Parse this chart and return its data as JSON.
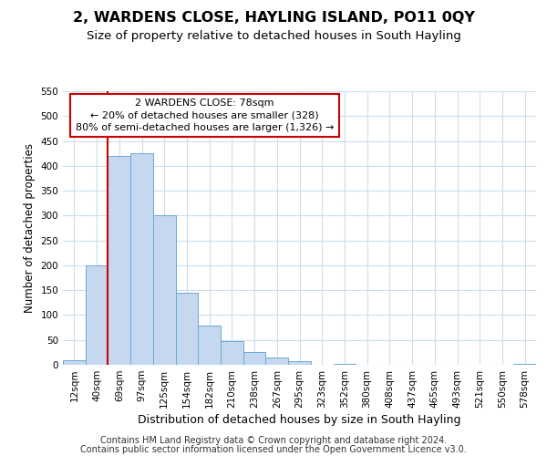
{
  "title": "2, WARDENS CLOSE, HAYLING ISLAND, PO11 0QY",
  "subtitle": "Size of property relative to detached houses in South Hayling",
  "xlabel": "Distribution of detached houses by size in South Hayling",
  "ylabel": "Number of detached properties",
  "bin_labels": [
    "12sqm",
    "40sqm",
    "69sqm",
    "97sqm",
    "125sqm",
    "154sqm",
    "182sqm",
    "210sqm",
    "238sqm",
    "267sqm",
    "295sqm",
    "323sqm",
    "352sqm",
    "380sqm",
    "408sqm",
    "437sqm",
    "465sqm",
    "493sqm",
    "521sqm",
    "550sqm",
    "578sqm"
  ],
  "bar_heights": [
    10,
    200,
    420,
    425,
    300,
    145,
    78,
    48,
    25,
    14,
    8,
    0,
    2,
    0,
    0,
    0,
    0,
    0,
    0,
    0,
    2
  ],
  "bar_color": "#c5d8f0",
  "bar_edge_color": "#6aaad4",
  "property_line_color": "#cc0000",
  "annotation_line1": "2 WARDENS CLOSE: 78sqm",
  "annotation_line2": "← 20% of detached houses are smaller (328)",
  "annotation_line3": "80% of semi-detached houses are larger (1,326) →",
  "annotation_box_color": "#ffffff",
  "annotation_box_edge": "#cc0000",
  "ylim_max": 550,
  "yticks": [
    0,
    50,
    100,
    150,
    200,
    250,
    300,
    350,
    400,
    450,
    500,
    550
  ],
  "footer_line1": "Contains HM Land Registry data © Crown copyright and database right 2024.",
  "footer_line2": "Contains public sector information licensed under the Open Government Licence v3.0.",
  "title_fontsize": 11.5,
  "subtitle_fontsize": 9.5,
  "xlabel_fontsize": 9,
  "ylabel_fontsize": 8.5,
  "tick_fontsize": 7.5,
  "annot_fontsize": 8,
  "footer_fontsize": 7,
  "grid_color": "#ccddee"
}
